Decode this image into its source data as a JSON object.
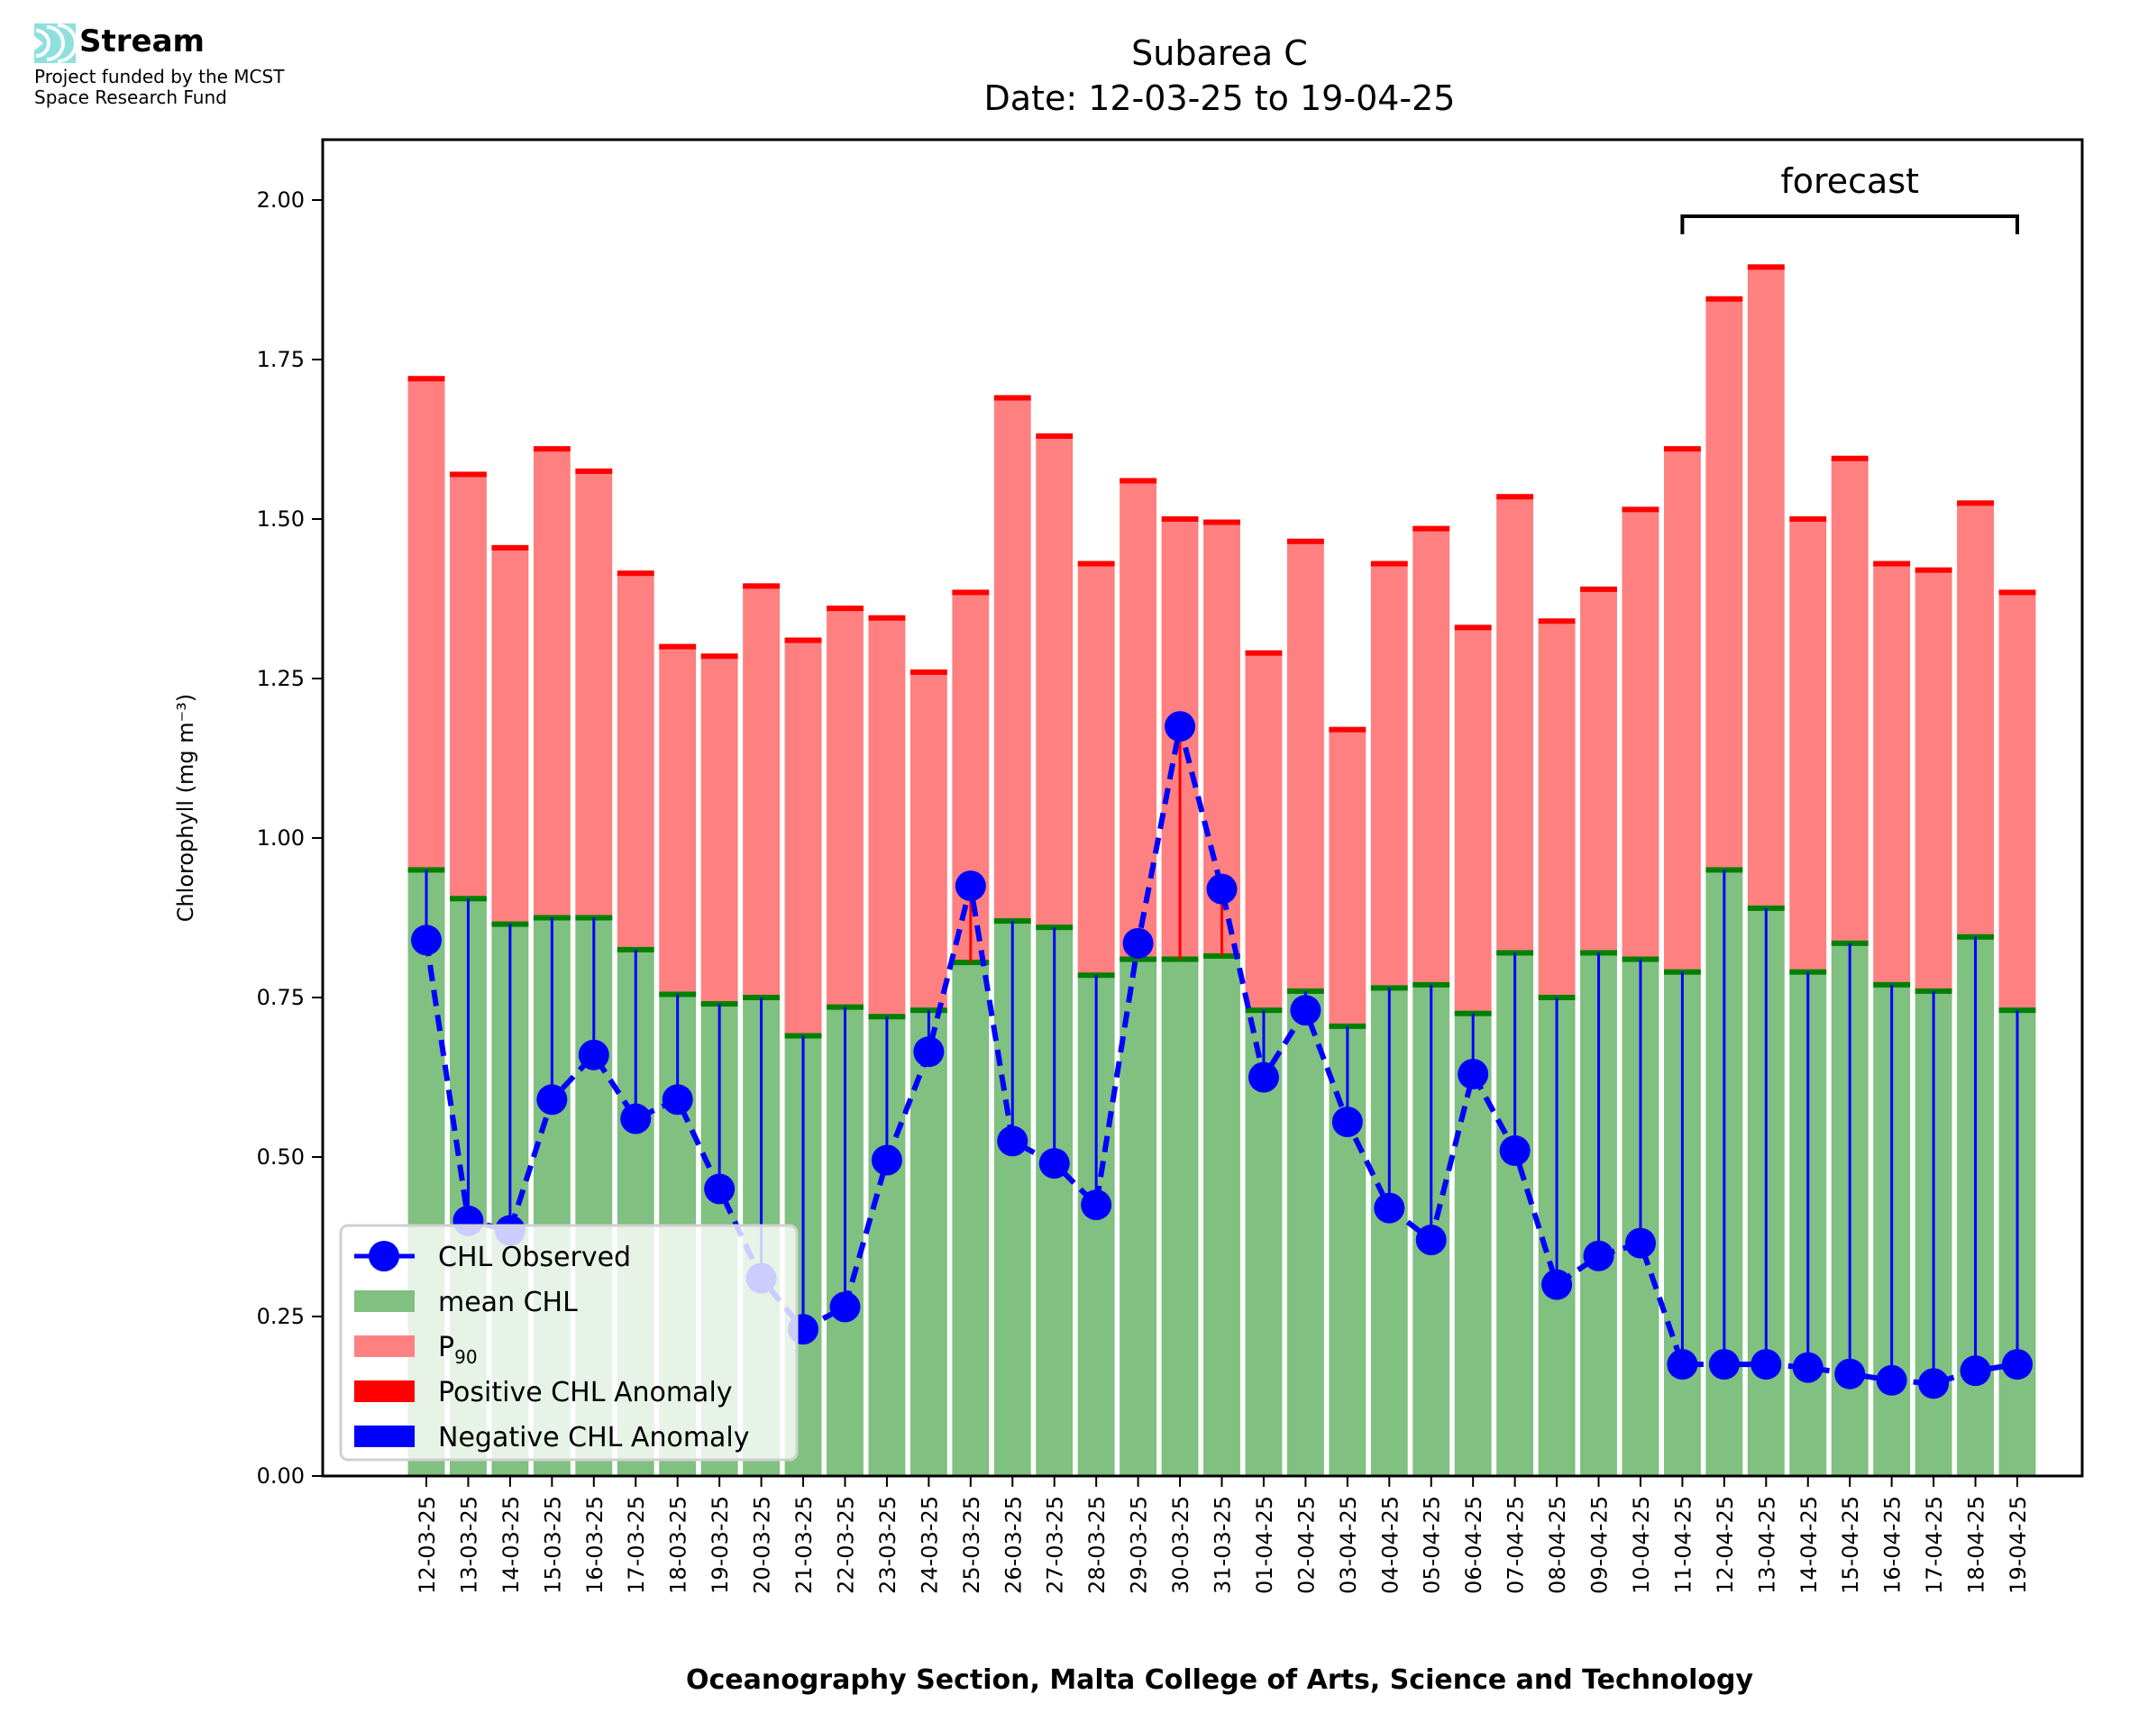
{
  "logo": {
    "brand": "Stream",
    "funding_line1": "Project funded by the MCST",
    "funding_line2": "Space Research Fund",
    "icon": "stream-waves-icon"
  },
  "colors": {
    "mean": "#80c080",
    "mean_edge": "#008000",
    "p90": "#ff8080",
    "p90_edge": "#ff0000",
    "observed": "#0000ff",
    "positive_anomaly": "#ff0000",
    "negative_anomaly": "#0000ff"
  },
  "chart_data": {
    "type": "bar",
    "title_line1": "Subarea C",
    "title_line2": "Date: 12-03-25 to 19-04-25",
    "xlabel": "Oceanography Section, Malta College of Arts, Science and Technology",
    "ylabel": "Chlorophyll (mg m⁻³)",
    "ylim": [
      0,
      2.09
    ],
    "yticks": [
      "0.00",
      "0.25",
      "0.50",
      "0.75",
      "1.00",
      "1.25",
      "1.50",
      "1.75",
      "2.00"
    ],
    "grid": false,
    "legend_position": "lower-left",
    "legend": [
      "CHL Observed",
      "mean CHL",
      "P90",
      "Positive CHL Anomaly",
      "Negative CHL Anomaly"
    ],
    "annotation": {
      "text": "forecast",
      "start_category": "11-04-25",
      "end_category": "19-04-25"
    },
    "categories": [
      "12-03-25",
      "13-03-25",
      "14-03-25",
      "15-03-25",
      "16-03-25",
      "17-03-25",
      "18-03-25",
      "19-03-25",
      "20-03-25",
      "21-03-25",
      "22-03-25",
      "23-03-25",
      "24-03-25",
      "25-03-25",
      "26-03-25",
      "27-03-25",
      "28-03-25",
      "29-03-25",
      "30-03-25",
      "31-03-25",
      "01-04-25",
      "02-04-25",
      "03-04-25",
      "04-04-25",
      "05-04-25",
      "06-04-25",
      "07-04-25",
      "08-04-25",
      "09-04-25",
      "10-04-25",
      "11-04-25",
      "12-04-25",
      "13-04-25",
      "14-04-25",
      "15-04-25",
      "16-04-25",
      "17-04-25",
      "18-04-25",
      "19-04-25"
    ],
    "series": [
      {
        "name": "mean CHL",
        "values": [
          0.95,
          0.905,
          0.865,
          0.875,
          0.875,
          0.825,
          0.755,
          0.74,
          0.75,
          0.69,
          0.735,
          0.72,
          0.73,
          0.805,
          0.87,
          0.86,
          0.785,
          0.81,
          0.81,
          0.815,
          0.73,
          0.76,
          0.705,
          0.765,
          0.77,
          0.725,
          0.82,
          0.75,
          0.82,
          0.81,
          0.79,
          0.95,
          0.89,
          0.79,
          0.835,
          0.77,
          0.76,
          0.845,
          0.73
        ]
      },
      {
        "name": "P90",
        "values": [
          1.72,
          1.57,
          1.455,
          1.61,
          1.575,
          1.415,
          1.3,
          1.285,
          1.395,
          1.31,
          1.36,
          1.345,
          1.26,
          1.385,
          1.69,
          1.63,
          1.43,
          1.56,
          1.5,
          1.495,
          1.29,
          1.465,
          1.17,
          1.43,
          1.485,
          1.33,
          1.535,
          1.34,
          1.39,
          1.515,
          1.61,
          1.845,
          1.895,
          1.5,
          1.595,
          1.43,
          1.42,
          1.525,
          1.385
        ]
      },
      {
        "name": "CHL Observed",
        "values": [
          0.84,
          0.4,
          0.385,
          0.59,
          0.66,
          0.56,
          0.59,
          0.45,
          0.31,
          0.23,
          0.265,
          0.495,
          0.665,
          0.925,
          0.525,
          0.49,
          0.425,
          0.835,
          1.175,
          0.92,
          0.625,
          0.73,
          0.555,
          0.42,
          0.37,
          0.63,
          0.51,
          0.3,
          0.345,
          0.365,
          0.175,
          0.175,
          0.175,
          0.17,
          0.16,
          0.15,
          0.145,
          0.165,
          0.175
        ]
      }
    ]
  }
}
